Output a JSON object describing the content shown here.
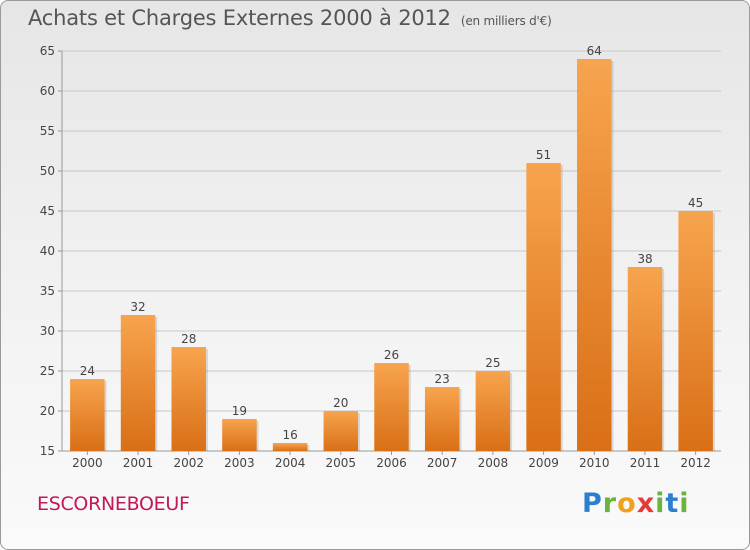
{
  "title": "Achats et Charges Externes 2000 à 2012",
  "subtitle": "(en milliers d'€)",
  "commune": "ESCORNEBOEUF",
  "logo": {
    "letters": [
      "P",
      "r",
      "o",
      "x",
      "i",
      "t",
      "i"
    ],
    "colors": [
      "#2a7fd0",
      "#6bb33a",
      "#f0a01e",
      "#e33b3b",
      "#6bb33a",
      "#2a7fd0",
      "#6bb33a"
    ]
  },
  "colors": {
    "bar_top": "#f7a44e",
    "bar_bottom": "#d96f16",
    "axis": "#999999",
    "grid": "#c8c8c8",
    "title": "#555555",
    "commune": "#c2185b"
  },
  "chart_data": {
    "type": "bar",
    "title": "Achats et Charges Externes 2000 à 2012",
    "subtitle": "(en milliers d'€)",
    "xlabel": "",
    "ylabel": "",
    "categories": [
      "2000",
      "2001",
      "2002",
      "2003",
      "2004",
      "2005",
      "2006",
      "2007",
      "2008",
      "2009",
      "2010",
      "2011",
      "2012"
    ],
    "values": [
      24,
      32,
      28,
      19,
      16,
      20,
      26,
      23,
      25,
      51,
      64,
      38,
      45
    ],
    "ylim": [
      15,
      65
    ],
    "yticks": [
      15,
      20,
      25,
      30,
      35,
      40,
      45,
      50,
      55,
      60,
      65
    ],
    "grid": true,
    "data_labels": true
  }
}
